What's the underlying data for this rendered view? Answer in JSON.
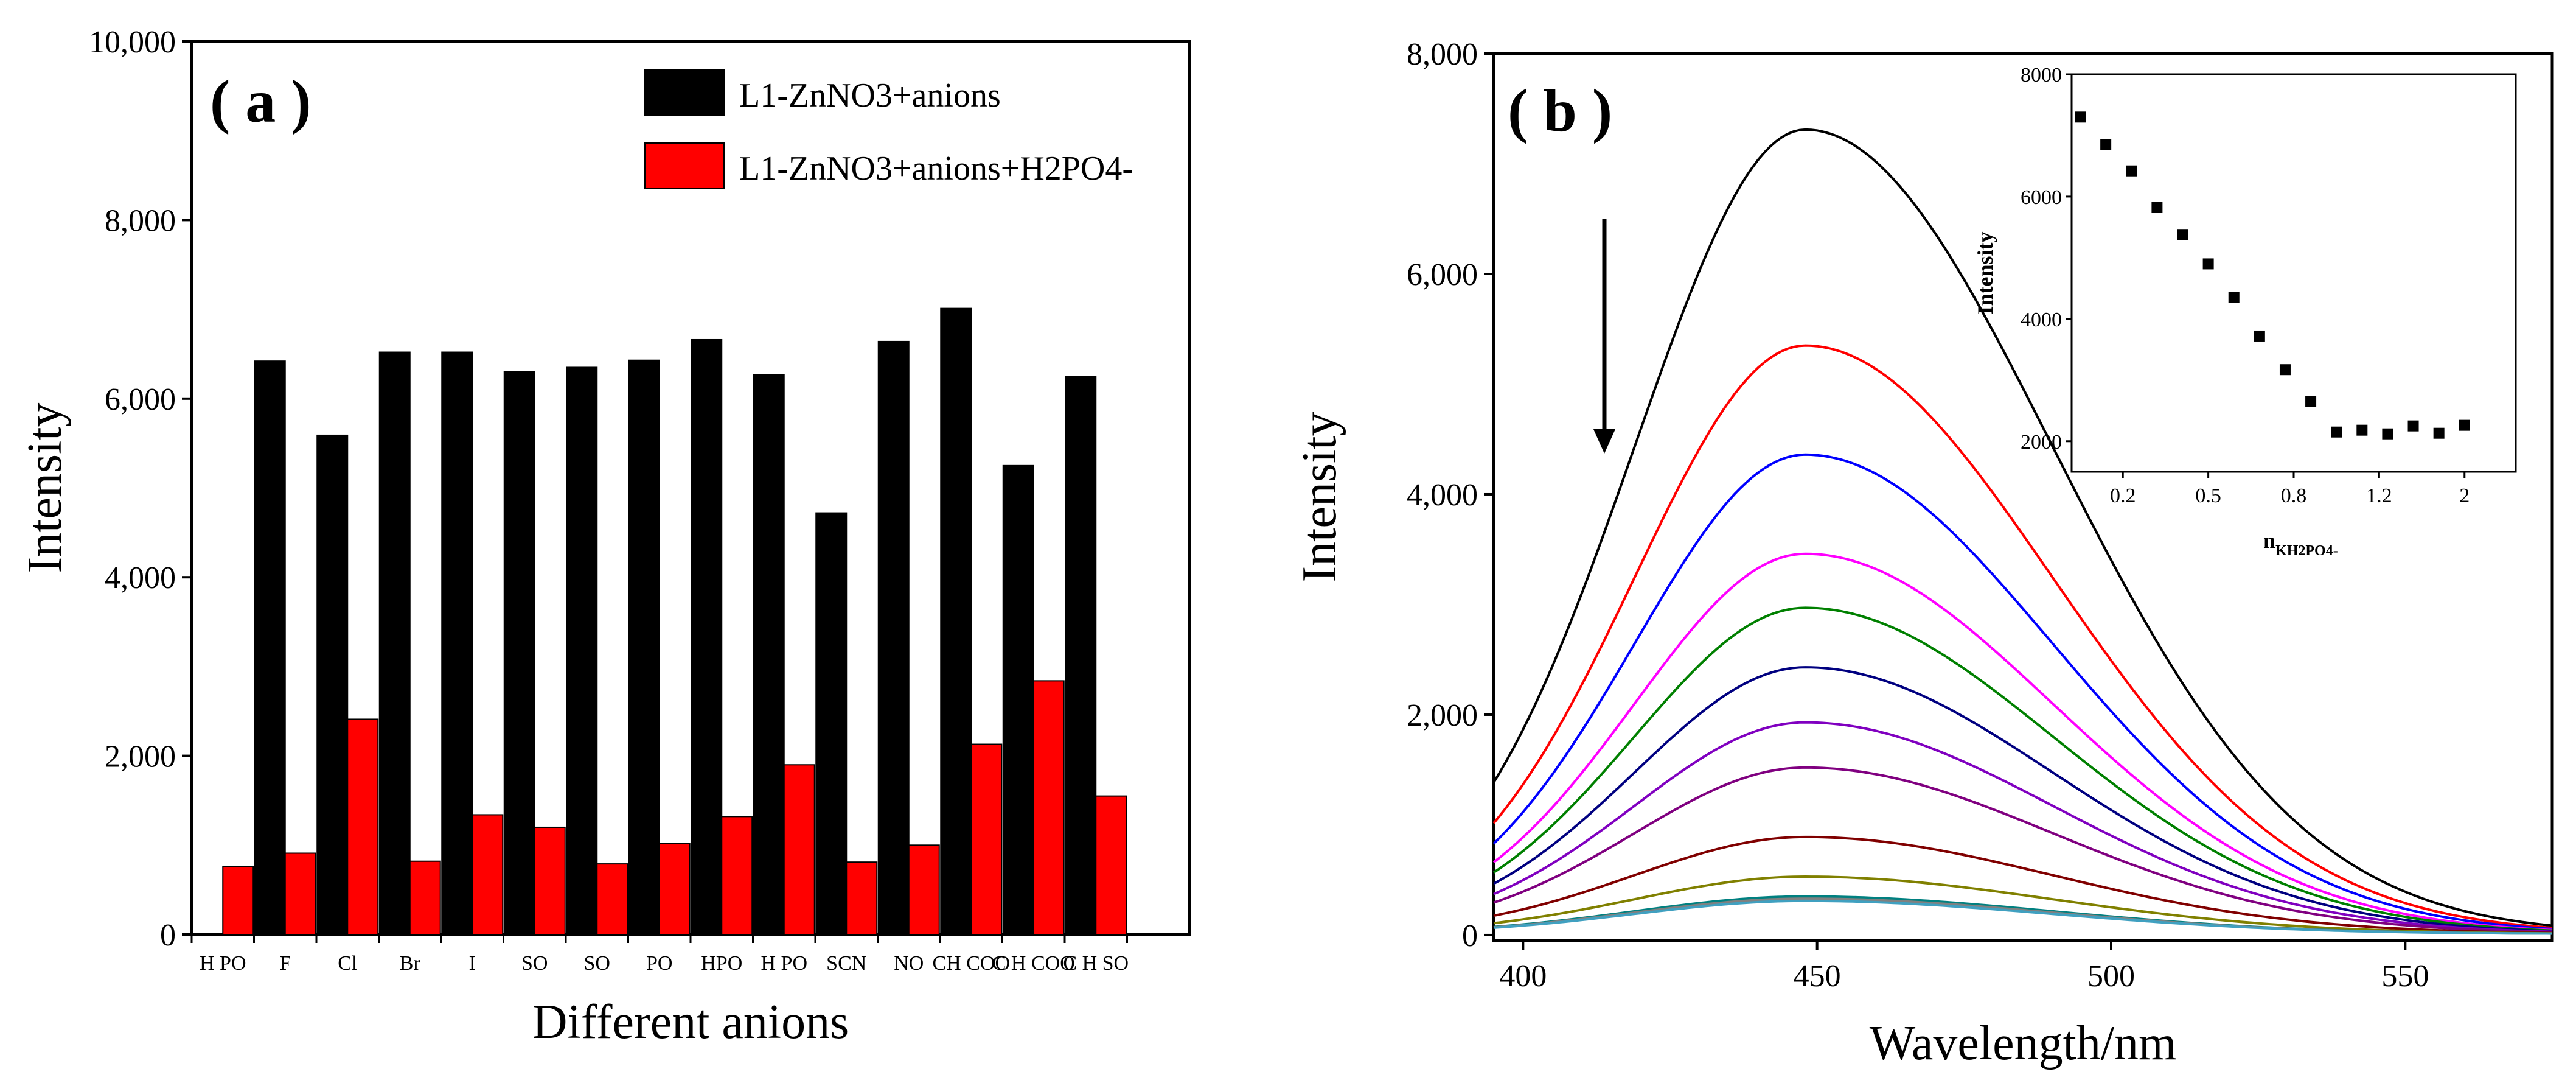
{
  "chart_data": [
    {
      "type": "bar",
      "panel_label": "( a )",
      "xlabel": "Different anions",
      "ylabel": "Intensity",
      "ylim": [
        0,
        10000
      ],
      "y_ticks": [
        0,
        2000,
        4000,
        6000,
        8000,
        10000
      ],
      "y_tick_labels": [
        "0",
        "2,000",
        "4,000",
        "6,000",
        "8,000",
        "10,000"
      ],
      "categories": [
        "H2PO4-",
        "F-",
        "Cl-",
        "Br-",
        "I-",
        "SO3 2-",
        "SO4 2-",
        "PO4 3-",
        "HPO4 2-",
        "H2PO2-",
        "SCN-",
        "NO2-",
        "CH3COO-",
        "C6H5COO-",
        "C6H5SO2-",
        ""
      ],
      "category_labels": [
        "H PO",
        "F",
        "Cl",
        "Br",
        "I",
        "SO",
        "SO",
        "PO",
        "HPO",
        "H PO",
        "SCN",
        "NO",
        "CH COO",
        "C H COO",
        "C H SO",
        ""
      ],
      "legend": [
        {
          "label": "L1-ZnNO3+anions",
          "color": "#000000"
        },
        {
          "label": "L1-ZnNO3+anions+H2PO4-",
          "color": "#ff0000"
        }
      ],
      "series": [
        {
          "name": "L1-ZnNO3+anions",
          "color": "#000000",
          "values": [
            null,
            6420,
            5590,
            6520,
            6520,
            6300,
            6350,
            6430,
            6660,
            6270,
            4720,
            6640,
            7010,
            5250,
            6250,
            null
          ]
        },
        {
          "name": "L1-ZnNO3+anions+H2PO4-",
          "color": "#ff0000",
          "values": [
            760,
            910,
            2410,
            820,
            1340,
            1200,
            790,
            1020,
            1320,
            1900,
            810,
            1000,
            2130,
            2840,
            1550,
            null
          ]
        }
      ]
    },
    {
      "type": "line",
      "panel_label": "( b )",
      "xlabel": "Wavelength/nm",
      "ylabel": "Intensity",
      "xlim": [
        395,
        575
      ],
      "ylim": [
        -50,
        8000
      ],
      "x_ticks": [
        400,
        450,
        500,
        550
      ],
      "x_tick_labels": [
        "400",
        "450",
        "500",
        "550"
      ],
      "y_ticks": [
        0,
        2000,
        4000,
        6000,
        8000
      ],
      "y_tick_labels": [
        "0",
        "2,000",
        "4,000",
        "6,000",
        "8,000"
      ],
      "annotation": "arrow pointing down (decreasing intensity)",
      "series": [
        {
          "peak": 7300,
          "color": "#000000"
        },
        {
          "peak": 5340,
          "color": "#ff0000"
        },
        {
          "peak": 4350,
          "color": "#0000ff"
        },
        {
          "peak": 3450,
          "color": "#ff00ff"
        },
        {
          "peak": 2960,
          "color": "#008000"
        },
        {
          "peak": 2420,
          "color": "#000080"
        },
        {
          "peak": 1920,
          "color": "#8000c0"
        },
        {
          "peak": 1510,
          "color": "#800080"
        },
        {
          "peak": 880,
          "color": "#800000"
        },
        {
          "peak": 520,
          "color": "#808000"
        },
        {
          "peak": 340,
          "color": "#008080"
        },
        {
          "peak": 320,
          "color": "#808080"
        },
        {
          "peak": 300,
          "color": "#40a0c0"
        }
      ],
      "inset": {
        "type": "scatter",
        "xlabel": "n",
        "xlabel_sub": "KH2PO4-",
        "ylabel": "Intensity",
        "xlim": [
          0,
          2.6
        ],
        "ylim": [
          1500,
          8000
        ],
        "y_ticks": [
          2000,
          4000,
          6000,
          8000
        ],
        "y_tick_labels": [
          "2000",
          "4000",
          "6000",
          "8000"
        ],
        "x_tick_positions": [
          0.3,
          0.8,
          1.3,
          1.8,
          2.3
        ],
        "x_tick_labels": [
          "0.2",
          "0.5",
          "0.8",
          "1.2",
          "2"
        ],
        "points": [
          [
            0.05,
            7300
          ],
          [
            0.2,
            6850
          ],
          [
            0.35,
            6420
          ],
          [
            0.5,
            5820
          ],
          [
            0.65,
            5380
          ],
          [
            0.8,
            4900
          ],
          [
            0.95,
            4350
          ],
          [
            1.1,
            3720
          ],
          [
            1.25,
            3170
          ],
          [
            1.4,
            2650
          ],
          [
            1.55,
            2150
          ],
          [
            1.7,
            2180
          ],
          [
            1.85,
            2120
          ],
          [
            2.0,
            2250
          ],
          [
            2.15,
            2130
          ],
          [
            2.3,
            2260
          ]
        ]
      }
    }
  ]
}
